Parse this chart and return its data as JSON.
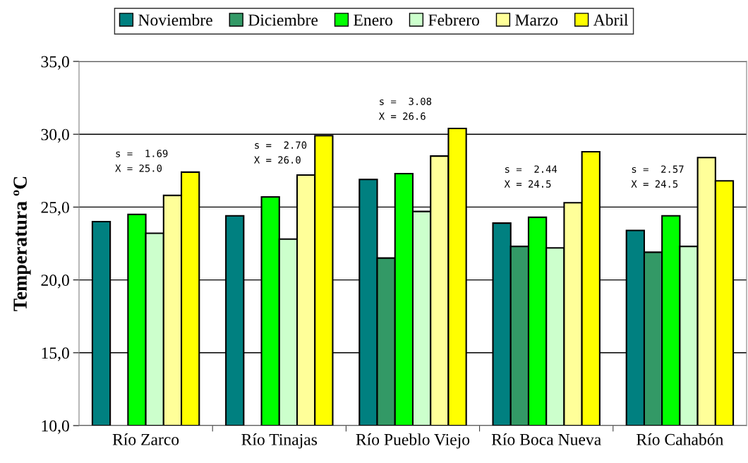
{
  "chart_data": {
    "type": "bar",
    "ylabel": "Temperatura ºC",
    "categories": [
      "Río Zarco",
      "Río Tinajas",
      "Río Pueblo Viejo",
      "Río Boca Nueva",
      "Río Cahabón"
    ],
    "series": [
      {
        "name": "Noviembre",
        "color": "#008080",
        "values": [
          24.0,
          24.4,
          26.9,
          23.9,
          23.4
        ]
      },
      {
        "name": "Diciembre",
        "color": "#339966",
        "values": [
          null,
          null,
          21.5,
          22.3,
          21.9
        ]
      },
      {
        "name": "Enero",
        "color": "#00ff00",
        "values": [
          24.5,
          25.7,
          27.3,
          24.3,
          24.4
        ]
      },
      {
        "name": "Febrero",
        "color": "#ccffcc",
        "values": [
          23.2,
          22.8,
          24.7,
          22.2,
          22.3
        ]
      },
      {
        "name": "Marzo",
        "color": "#ffff99",
        "values": [
          25.8,
          27.2,
          28.5,
          25.3,
          28.4
        ]
      },
      {
        "name": "Abril",
        "color": "#ffff00",
        "values": [
          27.4,
          29.9,
          30.4,
          28.8,
          26.8
        ]
      }
    ],
    "ylim": [
      10,
      35
    ],
    "yticks": [
      {
        "value": 10,
        "label": "10,0"
      },
      {
        "value": 15,
        "label": "15,0"
      },
      {
        "value": 20,
        "label": "20,0"
      },
      {
        "value": 25,
        "label": "25,0"
      },
      {
        "value": 30,
        "label": "30,0"
      },
      {
        "value": 35,
        "label": "35,0"
      }
    ],
    "grid": "y",
    "legend": "top",
    "annotations": [
      "s =  1.69\nX = 25.0",
      "s =  2.70\nX = 26.0",
      "s =  3.08\nX = 26.6",
      "s =  2.44\nX = 24.5",
      "s =  2.57\nX = 24.5"
    ]
  }
}
